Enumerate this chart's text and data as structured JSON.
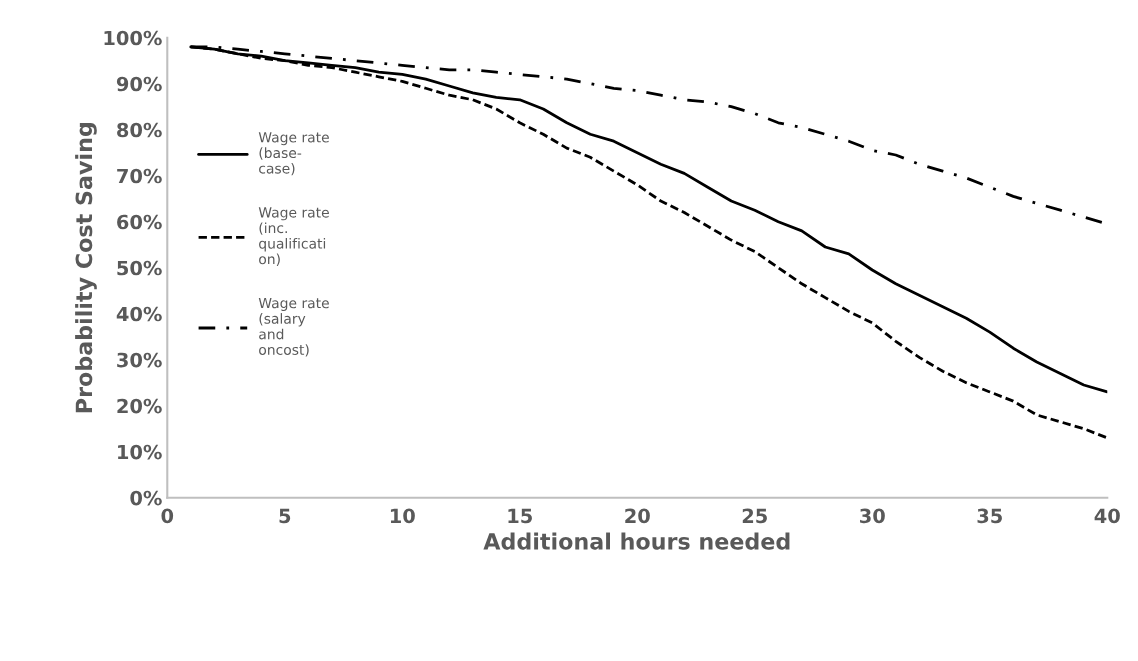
{
  "chart_data": {
    "type": "line",
    "xlabel": "Additional hours needed",
    "ylabel": "Probability Cost Saving",
    "x": [
      1,
      2,
      3,
      4,
      5,
      6,
      7,
      8,
      9,
      10,
      11,
      12,
      13,
      14,
      15,
      16,
      17,
      18,
      19,
      20,
      21,
      22,
      23,
      24,
      25,
      26,
      27,
      28,
      29,
      30,
      31,
      32,
      33,
      34,
      35,
      36,
      37,
      38,
      39,
      40
    ],
    "series": [
      {
        "name": "Wage rate\n(base-\ncase)",
        "color": "#000000",
        "line_style": "solid",
        "values": [
          98,
          97.5,
          96.5,
          96,
          95,
          94.5,
          94,
          93.5,
          92.5,
          92,
          91,
          89.5,
          88,
          87,
          86.5,
          84.5,
          81.5,
          79,
          77.5,
          75,
          72.5,
          70.5,
          67.5,
          64.5,
          62.5,
          60,
          58,
          54.5,
          53,
          49.5,
          46.5,
          44,
          41.5,
          39,
          36,
          32.5,
          29.5,
          27,
          24.5,
          23
        ]
      },
      {
        "name": "Wage rate\n(inc.\nqualificati\non)",
        "color": "#000000",
        "line_style": "dashed",
        "values": [
          98,
          97.5,
          96.5,
          95.5,
          95,
          94,
          93.5,
          92.5,
          91.5,
          90.5,
          89,
          87.5,
          86.5,
          84.5,
          81.5,
          79,
          76,
          74,
          71,
          68,
          64.5,
          62,
          59,
          56,
          53.5,
          50,
          46.5,
          43.5,
          40.5,
          38,
          34,
          30.5,
          27.5,
          25,
          23,
          21,
          18,
          16.5,
          15,
          13
        ]
      },
      {
        "name": "Wage rate\n(salary\nand\noncost)",
        "color": "#000000",
        "line_style": "dashdot",
        "values": [
          98,
          98,
          97.5,
          97,
          96.5,
          96,
          95.5,
          95,
          94.5,
          94,
          93.5,
          93,
          93,
          92.5,
          92,
          91.5,
          91,
          90,
          89,
          88.5,
          87.5,
          86.5,
          86,
          85,
          83.5,
          81.5,
          80.5,
          79,
          77.5,
          75.5,
          74.5,
          72.5,
          71,
          69.5,
          67.5,
          65.5,
          64,
          62.5,
          61,
          59.5
        ]
      }
    ],
    "xlim": [
      0,
      40
    ],
    "xticks": [
      0,
      5,
      10,
      15,
      20,
      25,
      30,
      35,
      40
    ],
    "ylim": [
      0,
      100
    ],
    "yticks": [
      {
        "value": 0,
        "label": "0%"
      },
      {
        "value": 10,
        "label": "10%"
      },
      {
        "value": 20,
        "label": "20%"
      },
      {
        "value": 30,
        "label": "30%"
      },
      {
        "value": 40,
        "label": "40%"
      },
      {
        "value": 50,
        "label": "50%"
      },
      {
        "value": 60,
        "label": "60%"
      },
      {
        "value": 70,
        "label": "70%"
      },
      {
        "value": 80,
        "label": "80%"
      },
      {
        "value": 90,
        "label": "90%"
      },
      {
        "value": 100,
        "label": "100%"
      }
    ],
    "grid": false,
    "legend": "left",
    "marker": "none"
  }
}
